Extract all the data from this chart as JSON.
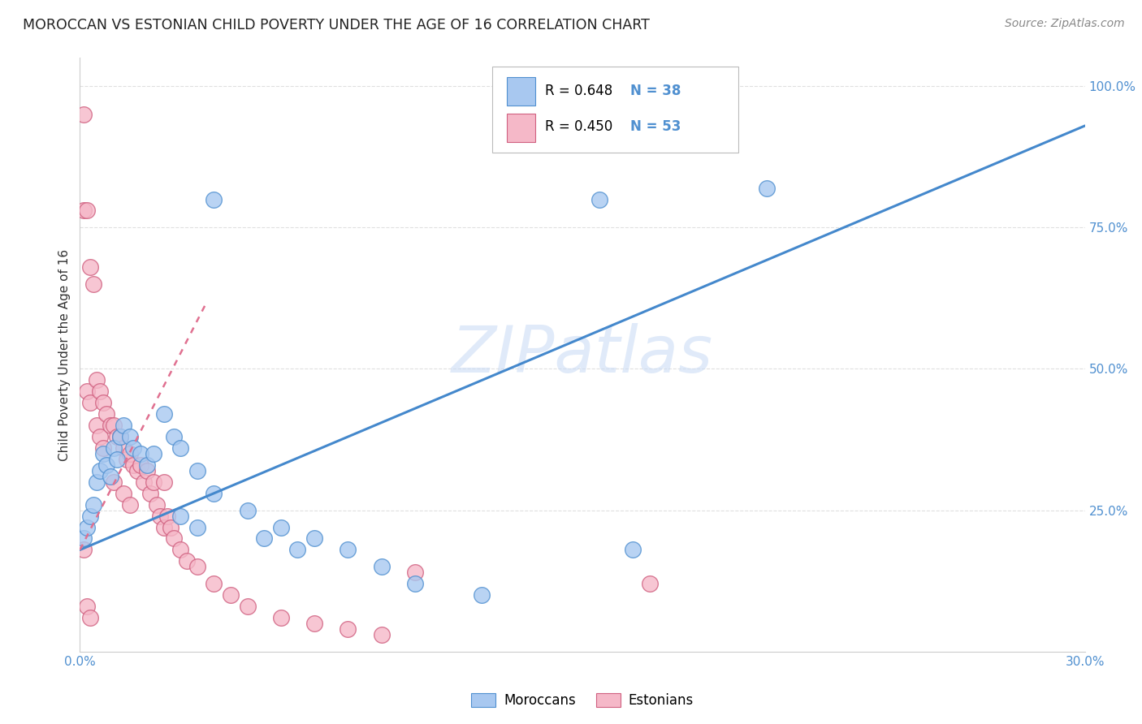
{
  "title": "MOROCCAN VS ESTONIAN CHILD POVERTY UNDER THE AGE OF 16 CORRELATION CHART",
  "source": "Source: ZipAtlas.com",
  "ylabel": "Child Poverty Under the Age of 16",
  "xlim": [
    0.0,
    0.3
  ],
  "ylim": [
    0.0,
    1.05
  ],
  "watermark": "ZIPatlas",
  "moroccan_color": "#a8c8f0",
  "estonian_color": "#f5b8c8",
  "moroccan_edge_color": "#5090d0",
  "estonian_edge_color": "#d06080",
  "moroccan_line_color": "#4488cc",
  "estonian_line_color": "#e07090",
  "background_color": "#ffffff",
  "grid_color": "#e0e0e0",
  "tick_color": "#5090d0",
  "moroccan_x": [
    0.001,
    0.002,
    0.003,
    0.004,
    0.005,
    0.006,
    0.007,
    0.008,
    0.009,
    0.01,
    0.011,
    0.012,
    0.013,
    0.015,
    0.016,
    0.018,
    0.02,
    0.022,
    0.025,
    0.028,
    0.03,
    0.035,
    0.04,
    0.05,
    0.06,
    0.07,
    0.08,
    0.09,
    0.1,
    0.12,
    0.04,
    0.155,
    0.205,
    0.165,
    0.055,
    0.065,
    0.035,
    0.03
  ],
  "moroccan_y": [
    0.2,
    0.22,
    0.24,
    0.26,
    0.3,
    0.32,
    0.35,
    0.33,
    0.31,
    0.36,
    0.34,
    0.38,
    0.4,
    0.38,
    0.36,
    0.35,
    0.33,
    0.35,
    0.42,
    0.38,
    0.36,
    0.32,
    0.28,
    0.25,
    0.22,
    0.2,
    0.18,
    0.15,
    0.12,
    0.1,
    0.8,
    0.8,
    0.82,
    0.18,
    0.2,
    0.18,
    0.22,
    0.24
  ],
  "estonian_x": [
    0.001,
    0.001,
    0.002,
    0.002,
    0.003,
    0.003,
    0.004,
    0.005,
    0.005,
    0.006,
    0.006,
    0.007,
    0.007,
    0.008,
    0.009,
    0.01,
    0.01,
    0.011,
    0.012,
    0.013,
    0.013,
    0.014,
    0.015,
    0.015,
    0.016,
    0.017,
    0.018,
    0.019,
    0.02,
    0.021,
    0.022,
    0.023,
    0.024,
    0.025,
    0.025,
    0.026,
    0.027,
    0.028,
    0.03,
    0.032,
    0.035,
    0.04,
    0.045,
    0.05,
    0.06,
    0.07,
    0.08,
    0.09,
    0.1,
    0.17,
    0.001,
    0.002,
    0.003
  ],
  "estonian_y": [
    0.95,
    0.78,
    0.78,
    0.46,
    0.68,
    0.44,
    0.65,
    0.48,
    0.4,
    0.46,
    0.38,
    0.44,
    0.36,
    0.42,
    0.4,
    0.4,
    0.3,
    0.38,
    0.38,
    0.36,
    0.28,
    0.34,
    0.35,
    0.26,
    0.33,
    0.32,
    0.33,
    0.3,
    0.32,
    0.28,
    0.3,
    0.26,
    0.24,
    0.3,
    0.22,
    0.24,
    0.22,
    0.2,
    0.18,
    0.16,
    0.15,
    0.12,
    0.1,
    0.08,
    0.06,
    0.05,
    0.04,
    0.03,
    0.14,
    0.12,
    0.18,
    0.08,
    0.06
  ],
  "moroccan_line_x0": 0.0,
  "moroccan_line_x1": 0.3,
  "moroccan_line_y0": 0.18,
  "moroccan_line_y1": 0.93,
  "estonian_line_x0": 0.0,
  "estonian_line_x1": 0.038,
  "estonian_line_y0": 0.18,
  "estonian_line_y1": 0.62
}
